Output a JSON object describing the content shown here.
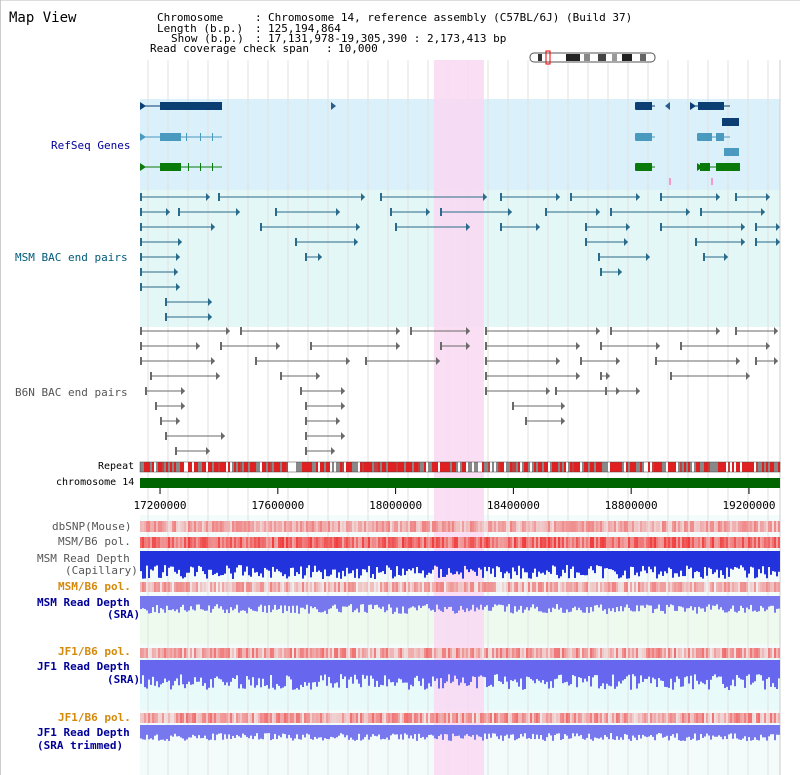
{
  "panel_title": "Map View",
  "info": {
    "chromosome_label": "Chromosome",
    "chromosome_value": "Chromosome 14, reference assembly (C57BL/6J) (Build 37)",
    "length_label": "Length (b.p.)",
    "length_value": "125,194,864",
    "show_label": "Show (b.p.)",
    "show_value": "17,131,978-19,305,390 : 2,173,413 bp",
    "coverage_label": "Read coverage check span",
    "coverage_value": "10,000"
  },
  "tracks": {
    "refseq": "RefSeq Genes",
    "msm_bac": "MSM BAC end pairs",
    "b6n_bac": "B6N BAC end pairs",
    "repeat": "Repeat",
    "chrom": "chromosome 14",
    "dbsnp": "dbSNP(Mouse)",
    "msm_b6_pol": "MSM/B6 pol.",
    "msm_depth_cap_1": "MSM Read Depth",
    "msm_depth_cap_2": "(Capillary)",
    "msm_b6_pol_sra": "MSM/B6 pol.",
    "msm_depth_sra_1": "MSM Read Depth",
    "msm_depth_sra_2": "(SRA)",
    "jf1_b6_pol": "JF1/B6 pol.",
    "jf1_depth_1": "JF1 Read Depth",
    "jf1_depth_2": "(SRA)",
    "jf1_b6_pol_trim": "JF1/B6 pol.",
    "jf1_trim_1": "JF1 Read Depth",
    "jf1_trim_2": "(SRA trimmed)"
  },
  "axis": {
    "view_start": 17131978,
    "view_end": 19305390,
    "ticks": [
      "17200000",
      "17600000",
      "18000000",
      "18400000",
      "18800000",
      "19200000"
    ],
    "highlight_range": [
      18130000,
      18300000
    ]
  },
  "colors": {
    "label_blue": "#000099",
    "label_teal": "#005a7a",
    "label_gray": "#555555",
    "label_orange": "#d4890a",
    "refseq_bg": "#daf0fa",
    "bac_bg": "#e3f7f7",
    "highlight": "#f9d8f2",
    "chrom_green": "#006400"
  }
}
